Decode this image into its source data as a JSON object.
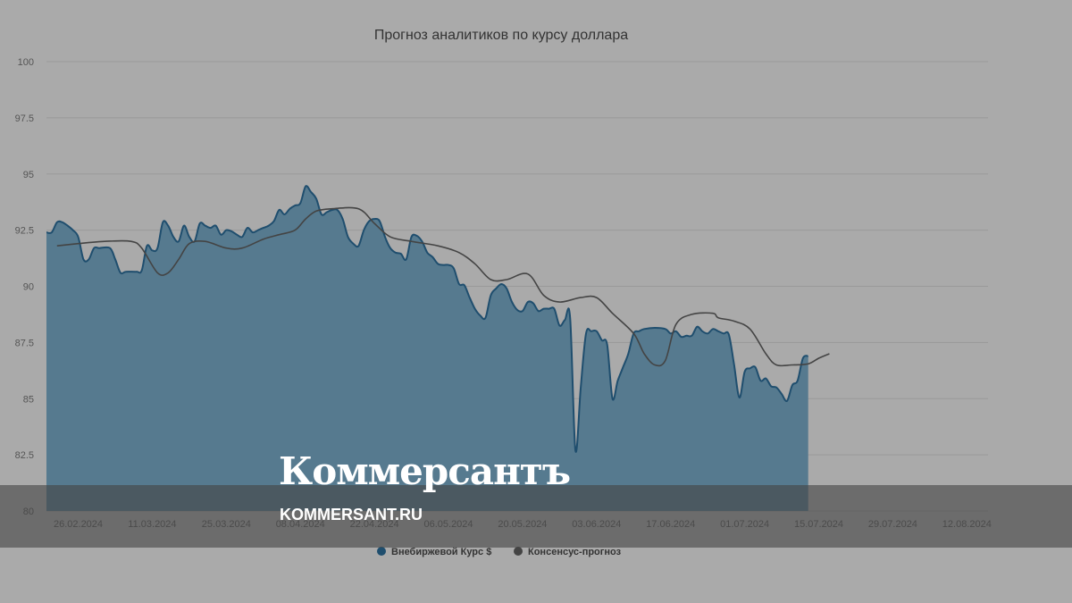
{
  "chart_data": {
    "type": "area",
    "title": "Прогноз аналитиков по курсу доллара",
    "xlabel": "",
    "ylabel": "",
    "ylim": [
      80,
      100
    ],
    "y_ticks": [
      "80",
      "82.5",
      "85",
      "87.5",
      "90",
      "92.5",
      "95",
      "97.5",
      "100"
    ],
    "x_range": [
      "2024-02-20",
      "2024-08-16"
    ],
    "x_ticks": [
      {
        "date": "2024-02-26",
        "label": "26.02.2024"
      },
      {
        "date": "2024-03-11",
        "label": "11.03.2024"
      },
      {
        "date": "2024-03-25",
        "label": "25.03.2024"
      },
      {
        "date": "2024-04-08",
        "label": "08.04.2024"
      },
      {
        "date": "2024-04-22",
        "label": "22.04.2024"
      },
      {
        "date": "2024-05-06",
        "label": "06.05.2024"
      },
      {
        "date": "2024-05-20",
        "label": "20.05.2024"
      },
      {
        "date": "2024-06-03",
        "label": "03.06.2024"
      },
      {
        "date": "2024-06-17",
        "label": "17.06.2024"
      },
      {
        "date": "2024-07-01",
        "label": "01.07.2024"
      },
      {
        "date": "2024-07-15",
        "label": "15.07.2024"
      },
      {
        "date": "2024-07-29",
        "label": "29.07.2024"
      },
      {
        "date": "2024-08-12",
        "label": "12.08.2024"
      }
    ],
    "legend_position": "bottom-center",
    "grid": true,
    "series": [
      {
        "name": "Внебиржевой Курс $",
        "kind": "area",
        "color": "#1f4e6e",
        "fill": "#567a8f",
        "points": [
          [
            "2024-02-20",
            92.4
          ],
          [
            "2024-02-21",
            92.4
          ],
          [
            "2024-02-22",
            92.85
          ],
          [
            "2024-02-23",
            92.85
          ],
          [
            "2024-02-24",
            92.7
          ],
          [
            "2024-02-25",
            92.5
          ],
          [
            "2024-02-26",
            92.2
          ],
          [
            "2024-02-27",
            91.2
          ],
          [
            "2024-02-28",
            91.2
          ],
          [
            "2024-02-29",
            91.7
          ],
          [
            "2024-03-01",
            91.7
          ],
          [
            "2024-03-03",
            91.7
          ],
          [
            "2024-03-04",
            91.2
          ],
          [
            "2024-03-05",
            90.6
          ],
          [
            "2024-03-06",
            90.65
          ],
          [
            "2024-03-08",
            90.65
          ],
          [
            "2024-03-09",
            90.7
          ],
          [
            "2024-03-10",
            91.8
          ],
          [
            "2024-03-11",
            91.6
          ],
          [
            "2024-03-12",
            91.7
          ],
          [
            "2024-03-13",
            92.85
          ],
          [
            "2024-03-14",
            92.7
          ],
          [
            "2024-03-15",
            92.2
          ],
          [
            "2024-03-16",
            92.0
          ],
          [
            "2024-03-17",
            92.7
          ],
          [
            "2024-03-18",
            92.2
          ],
          [
            "2024-03-19",
            92.0
          ],
          [
            "2024-03-20",
            92.8
          ],
          [
            "2024-03-21",
            92.7
          ],
          [
            "2024-03-22",
            92.6
          ],
          [
            "2024-03-23",
            92.7
          ],
          [
            "2024-03-24",
            92.3
          ],
          [
            "2024-03-25",
            92.5
          ],
          [
            "2024-03-26",
            92.45
          ],
          [
            "2024-03-27",
            92.3
          ],
          [
            "2024-03-28",
            92.2
          ],
          [
            "2024-03-29",
            92.6
          ],
          [
            "2024-03-30",
            92.4
          ],
          [
            "2024-03-31",
            92.5
          ],
          [
            "2024-04-01",
            92.6
          ],
          [
            "2024-04-02",
            92.7
          ],
          [
            "2024-04-03",
            92.9
          ],
          [
            "2024-04-04",
            93.4
          ],
          [
            "2024-04-05",
            93.2
          ],
          [
            "2024-04-06",
            93.45
          ],
          [
            "2024-04-07",
            93.6
          ],
          [
            "2024-04-08",
            93.7
          ],
          [
            "2024-04-09",
            94.45
          ],
          [
            "2024-04-10",
            94.2
          ],
          [
            "2024-04-11",
            93.9
          ],
          [
            "2024-04-12",
            93.2
          ],
          [
            "2024-04-13",
            93.3
          ],
          [
            "2024-04-14",
            93.4
          ],
          [
            "2024-04-15",
            93.4
          ],
          [
            "2024-04-16",
            93.0
          ],
          [
            "2024-04-17",
            92.2
          ],
          [
            "2024-04-18",
            91.9
          ],
          [
            "2024-04-19",
            91.8
          ],
          [
            "2024-04-20",
            92.5
          ],
          [
            "2024-04-21",
            92.9
          ],
          [
            "2024-04-22",
            93.0
          ],
          [
            "2024-04-23",
            92.9
          ],
          [
            "2024-04-24",
            92.2
          ],
          [
            "2024-04-25",
            91.7
          ],
          [
            "2024-04-26",
            91.5
          ],
          [
            "2024-04-27",
            91.45
          ],
          [
            "2024-04-28",
            91.2
          ],
          [
            "2024-04-29",
            92.2
          ],
          [
            "2024-04-30",
            92.25
          ],
          [
            "2024-05-01",
            92.0
          ],
          [
            "2024-05-02",
            91.5
          ],
          [
            "2024-05-03",
            91.3
          ],
          [
            "2024-05-04",
            91.0
          ],
          [
            "2024-05-05",
            90.95
          ],
          [
            "2024-05-06",
            90.95
          ],
          [
            "2024-05-07",
            90.8
          ],
          [
            "2024-05-08",
            90.1
          ],
          [
            "2024-05-09",
            90.05
          ],
          [
            "2024-05-10",
            89.5
          ],
          [
            "2024-05-11",
            89.0
          ],
          [
            "2024-05-12",
            88.7
          ],
          [
            "2024-05-13",
            88.6
          ],
          [
            "2024-05-14",
            89.6
          ],
          [
            "2024-05-15",
            89.9
          ],
          [
            "2024-05-16",
            90.1
          ],
          [
            "2024-05-17",
            89.9
          ],
          [
            "2024-05-18",
            89.3
          ],
          [
            "2024-05-19",
            88.95
          ],
          [
            "2024-05-20",
            88.9
          ],
          [
            "2024-05-21",
            89.3
          ],
          [
            "2024-05-22",
            89.25
          ],
          [
            "2024-05-23",
            88.9
          ],
          [
            "2024-05-24",
            89.0
          ],
          [
            "2024-05-25",
            89.0
          ],
          [
            "2024-05-26",
            89.0
          ],
          [
            "2024-05-27",
            88.25
          ],
          [
            "2024-05-28",
            88.5
          ],
          [
            "2024-05-29",
            88.6
          ],
          [
            "2024-05-30",
            82.7
          ],
          [
            "2024-05-31",
            85.5
          ],
          [
            "2024-06-01",
            87.9
          ],
          [
            "2024-06-02",
            88.0
          ],
          [
            "2024-06-03",
            88.0
          ],
          [
            "2024-06-04",
            87.6
          ],
          [
            "2024-06-05",
            87.4
          ],
          [
            "2024-06-06",
            85.0
          ],
          [
            "2024-06-07",
            85.8
          ],
          [
            "2024-06-08",
            86.4
          ],
          [
            "2024-06-09",
            87.0
          ],
          [
            "2024-06-10",
            87.9
          ],
          [
            "2024-06-11",
            88.0
          ],
          [
            "2024-06-12",
            88.1
          ],
          [
            "2024-06-14",
            88.15
          ],
          [
            "2024-06-16",
            88.1
          ],
          [
            "2024-06-17",
            87.9
          ],
          [
            "2024-06-18",
            88.0
          ],
          [
            "2024-06-19",
            87.75
          ],
          [
            "2024-06-20",
            87.8
          ],
          [
            "2024-06-21",
            87.8
          ],
          [
            "2024-06-22",
            88.2
          ],
          [
            "2024-06-23",
            88.0
          ],
          [
            "2024-06-24",
            87.9
          ],
          [
            "2024-06-25",
            88.1
          ],
          [
            "2024-06-26",
            88.0
          ],
          [
            "2024-06-27",
            87.9
          ],
          [
            "2024-06-28",
            87.85
          ],
          [
            "2024-06-29",
            86.5
          ],
          [
            "2024-06-30",
            85.05
          ],
          [
            "2024-07-01",
            86.2
          ],
          [
            "2024-07-02",
            86.35
          ],
          [
            "2024-07-03",
            86.4
          ],
          [
            "2024-07-04",
            85.8
          ],
          [
            "2024-07-05",
            85.9
          ],
          [
            "2024-07-06",
            85.55
          ],
          [
            "2024-07-07",
            85.5
          ],
          [
            "2024-07-08",
            85.2
          ],
          [
            "2024-07-09",
            84.9
          ],
          [
            "2024-07-10",
            85.6
          ],
          [
            "2024-07-11",
            85.8
          ],
          [
            "2024-07-12",
            86.8
          ],
          [
            "2024-07-13",
            86.9
          ]
        ]
      },
      {
        "name": "Консенсус-прогноз",
        "kind": "line",
        "color": "#444444",
        "points": [
          [
            "2024-02-22",
            91.8
          ],
          [
            "2024-02-26",
            91.9
          ],
          [
            "2024-03-02",
            92.0
          ],
          [
            "2024-03-07",
            92.0
          ],
          [
            "2024-03-09",
            91.7
          ],
          [
            "2024-03-12",
            90.6
          ],
          [
            "2024-03-14",
            90.6
          ],
          [
            "2024-03-16",
            91.2
          ],
          [
            "2024-03-18",
            91.9
          ],
          [
            "2024-03-21",
            92.0
          ],
          [
            "2024-03-25",
            91.7
          ],
          [
            "2024-03-28",
            91.7
          ],
          [
            "2024-04-01",
            92.1
          ],
          [
            "2024-04-04",
            92.3
          ],
          [
            "2024-04-07",
            92.5
          ],
          [
            "2024-04-09",
            93.0
          ],
          [
            "2024-04-11",
            93.35
          ],
          [
            "2024-04-14",
            93.45
          ],
          [
            "2024-04-19",
            93.45
          ],
          [
            "2024-04-22",
            92.8
          ],
          [
            "2024-04-25",
            92.2
          ],
          [
            "2024-04-29",
            92.0
          ],
          [
            "2024-05-04",
            91.8
          ],
          [
            "2024-05-08",
            91.5
          ],
          [
            "2024-05-11",
            91.0
          ],
          [
            "2024-05-14",
            90.3
          ],
          [
            "2024-05-17",
            90.3
          ],
          [
            "2024-05-21",
            90.55
          ],
          [
            "2024-05-24",
            89.6
          ],
          [
            "2024-05-27",
            89.3
          ],
          [
            "2024-05-31",
            89.5
          ],
          [
            "2024-06-03",
            89.5
          ],
          [
            "2024-06-06",
            88.8
          ],
          [
            "2024-06-10",
            87.9
          ],
          [
            "2024-06-12",
            87.0
          ],
          [
            "2024-06-14",
            86.5
          ],
          [
            "2024-06-16",
            86.7
          ],
          [
            "2024-06-18",
            88.3
          ],
          [
            "2024-06-21",
            88.75
          ],
          [
            "2024-06-25",
            88.8
          ],
          [
            "2024-06-26",
            88.6
          ],
          [
            "2024-06-29",
            88.45
          ],
          [
            "2024-07-02",
            88.1
          ],
          [
            "2024-07-05",
            87.0
          ],
          [
            "2024-07-07",
            86.5
          ],
          [
            "2024-07-10",
            86.5
          ],
          [
            "2024-07-13",
            86.55
          ],
          [
            "2024-07-15",
            86.8
          ],
          [
            "2024-07-17",
            87.0
          ]
        ]
      }
    ]
  },
  "watermark": {
    "logo": "Коммерсантъ",
    "url": "KOMMERSANT.RU"
  }
}
